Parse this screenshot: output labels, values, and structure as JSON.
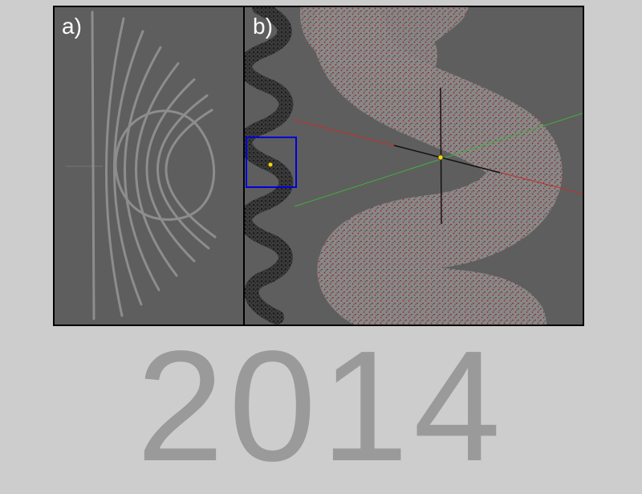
{
  "panels": [
    {
      "label": "a)"
    },
    {
      "label": "b)"
    }
  ],
  "year": "2014",
  "colors": {
    "background": "#cdcdcd",
    "viewport": "#5e5e5e",
    "tube": "#8f8f8f",
    "particle_dark": "#1a1a1a",
    "particle_red": "#b01818",
    "axis_red": "#c03030",
    "axis_green": "#40b040",
    "selection_box": "#0000dd",
    "origin_point": "#ffd400"
  }
}
